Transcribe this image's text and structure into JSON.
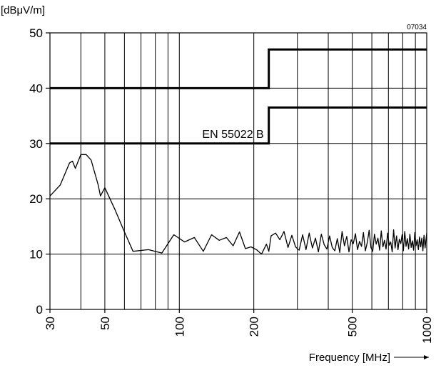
{
  "chart_data": {
    "type": "line",
    "ylabel": "[dBμV/m]",
    "xlabel": "Frequency [MHz]",
    "xlabel_arrow": "→",
    "figure_code": "07034",
    "x_scale": "log",
    "xlim": [
      30,
      1000
    ],
    "ylim": [
      0,
      50
    ],
    "grid": true,
    "x_ticks": [
      30,
      50,
      100,
      200,
      500,
      1000
    ],
    "x_tick_labels": [
      "30",
      "50",
      "100",
      "200",
      "500",
      "1000"
    ],
    "x_minor_gridlines": [
      40,
      60,
      70,
      80,
      90,
      300,
      400,
      600,
      700,
      800,
      900
    ],
    "y_ticks": [
      0,
      10,
      20,
      30,
      40,
      50
    ],
    "y_tick_labels": [
      "0",
      "10",
      "20",
      "30",
      "40",
      "50"
    ],
    "limit_lines": [
      {
        "label": "",
        "x": [
          30,
          230,
          230,
          1000
        ],
        "y": [
          40,
          40,
          47,
          47
        ]
      },
      {
        "label": "EN 55022 B",
        "x": [
          30,
          230,
          230,
          1000
        ],
        "y": [
          30,
          30,
          36.5,
          36.5
        ]
      }
    ],
    "series": [
      {
        "x": [
          30,
          33,
          36,
          37,
          38,
          40,
          42,
          44,
          47,
          48,
          50,
          55,
          60,
          65,
          75,
          85,
          95,
          105,
          115,
          125,
          135,
          145,
          155,
          165,
          175,
          185,
          195,
          205,
          215,
          225,
          230,
          235,
          245,
          255,
          265,
          275,
          285,
          295,
          305,
          315,
          325,
          335,
          345,
          355,
          365,
          375,
          385,
          395,
          405,
          415,
          425,
          435,
          445,
          455,
          465,
          475,
          485,
          495,
          505,
          515,
          525,
          535,
          545,
          555,
          565,
          575,
          585,
          595,
          605,
          615,
          625,
          635,
          645,
          655,
          665,
          675,
          685,
          695,
          705,
          715,
          725,
          735,
          745,
          755,
          765,
          775,
          785,
          795,
          805,
          815,
          825,
          835,
          845,
          855,
          865,
          875,
          885,
          895,
          905,
          915,
          925,
          935,
          945,
          955,
          965,
          975,
          985,
          1000
        ],
        "y": [
          20.5,
          22.5,
          26.5,
          26.8,
          25.5,
          28,
          28,
          27,
          22.5,
          20.5,
          22,
          18,
          14,
          10.5,
          10.8,
          10.2,
          13.5,
          12.2,
          13,
          10.5,
          13.5,
          12.5,
          13,
          11.5,
          14,
          11,
          11.3,
          10.8,
          10,
          11.8,
          10.5,
          13.3,
          13.8,
          12.6,
          14.1,
          11.2,
          13.4,
          11.3,
          10.7,
          13.5,
          10.8,
          13.8,
          11.1,
          12.9,
          10.4,
          13.6,
          11.7,
          10.9,
          13.3,
          11.2,
          10.6,
          12.8,
          10.3,
          14.1,
          11.5,
          13.2,
          10.4,
          12.6,
          11.9,
          13.7,
          10.8,
          12.3,
          11.4,
          13.9,
          10.6,
          12.1,
          14.3,
          11.2,
          10.5,
          13.6,
          11.8,
          12.9,
          10.7,
          14.2,
          11.3,
          12.5,
          10.9,
          13.8,
          11.6,
          12.2,
          10.4,
          14.4,
          11.1,
          13.3,
          10.8,
          12.7,
          11.9,
          13.5,
          10.6,
          14.1,
          11.4,
          12.8,
          10.9,
          13.6,
          11.2,
          12.4,
          10.7,
          13.9,
          11.5,
          12.6,
          10.8,
          13.1,
          11.3,
          12.9,
          10.6,
          13.4,
          11.1,
          13.8
        ]
      }
    ]
  }
}
